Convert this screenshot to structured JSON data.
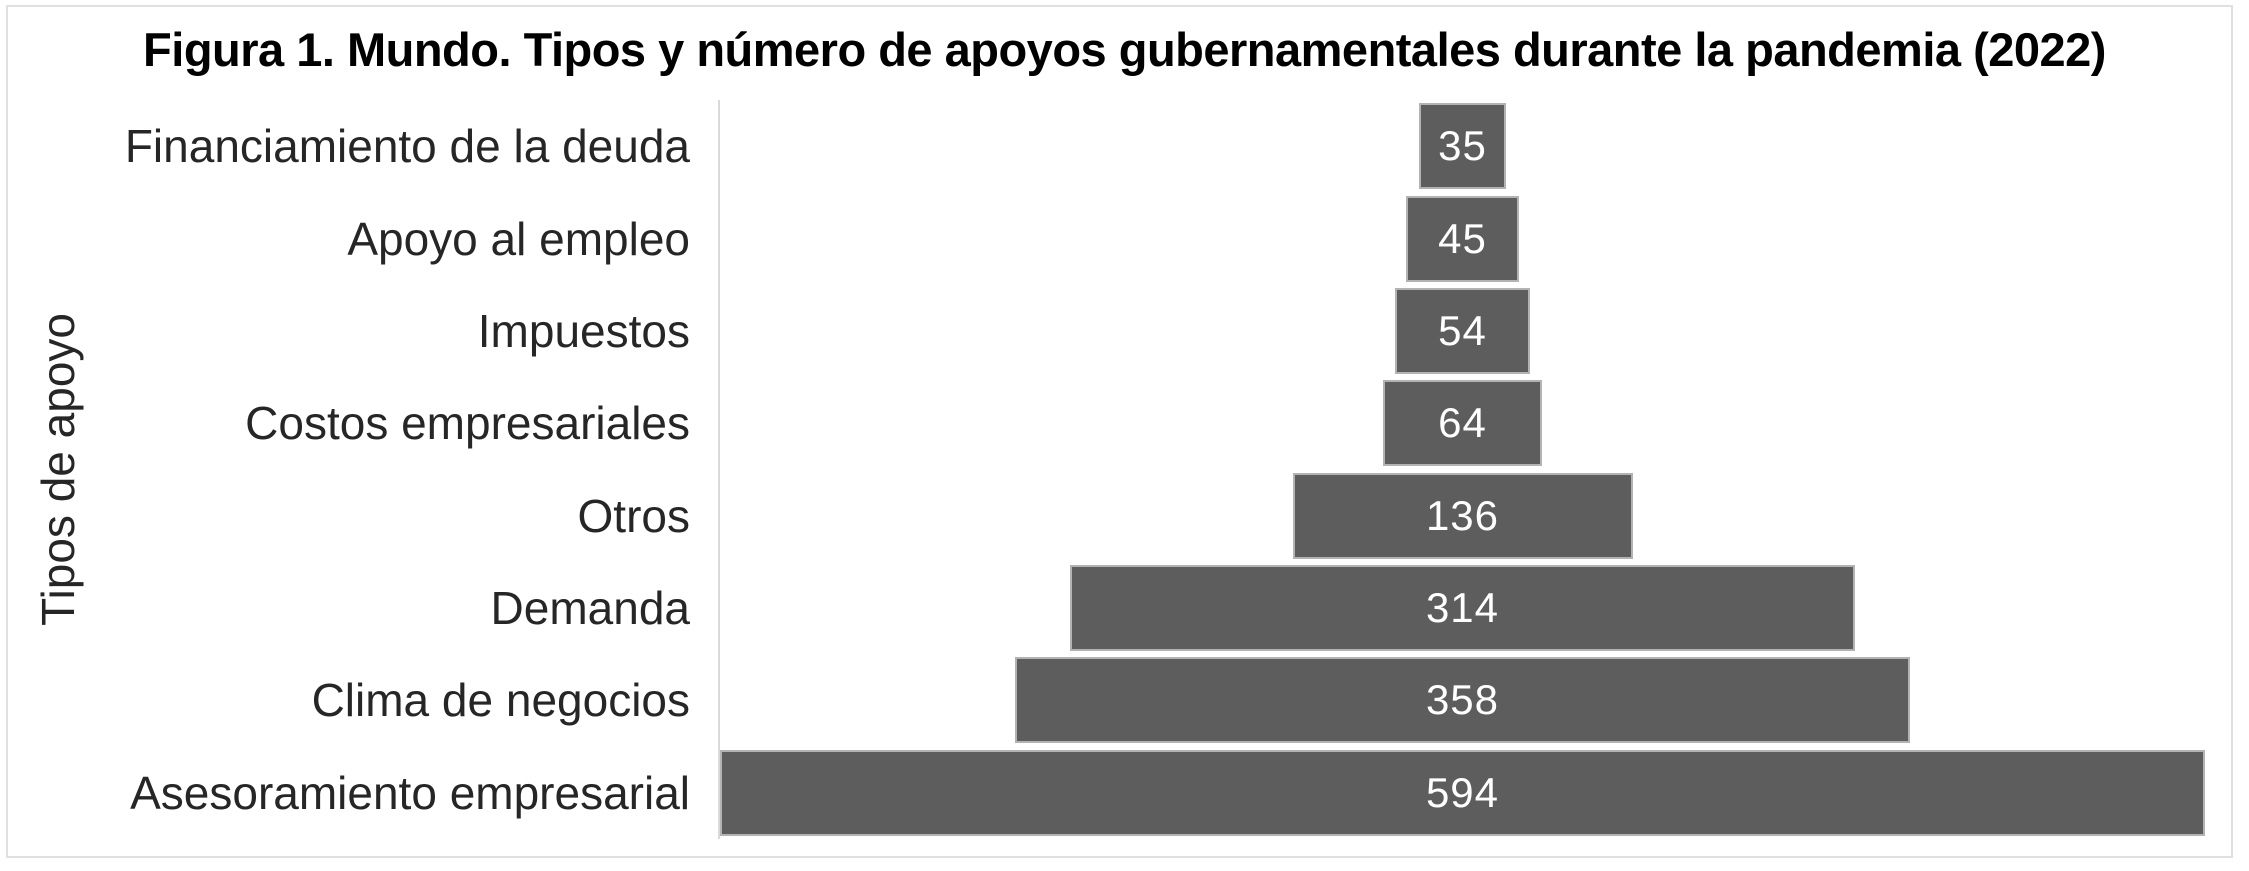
{
  "figure": {
    "title": "Figura 1. Mundo. Tipos y número de apoyos gubernamentales durante la pandemia (2022)",
    "y_axis_label": "Tipos de apoyo"
  },
  "colors": {
    "bar_fill": "#5d5d5d",
    "bar_border": "#b3b3b3",
    "value_text": "#ffffff",
    "label_text": "#262626",
    "title_text": "#000000",
    "axis_line": "#d9d9d9",
    "figure_border": "#e0e0e0"
  },
  "chart_data": {
    "type": "bar",
    "subtype": "horizontal-centered-funnel",
    "title": "Figura 1. Mundo. Tipos y número de apoyos gubernamentales durante la pandemia (2022)",
    "xlabel": "",
    "ylabel": "Tipos de apoyo",
    "categories": [
      "Financiamiento de la deuda",
      "Apoyo al empleo",
      "Impuestos",
      "Costos empresariales",
      "Otros",
      "Demanda",
      "Clima de negocios",
      "Asesoramiento empresarial"
    ],
    "values": [
      35,
      45,
      54,
      64,
      136,
      314,
      358,
      594
    ],
    "value_labels": [
      "35",
      "45",
      "54",
      "64",
      "136",
      "314",
      "358",
      "594"
    ],
    "value_labels_position": "inside-center",
    "bars_centered": true,
    "xlim": [
      0,
      594
    ],
    "grid": false,
    "legend": false
  }
}
